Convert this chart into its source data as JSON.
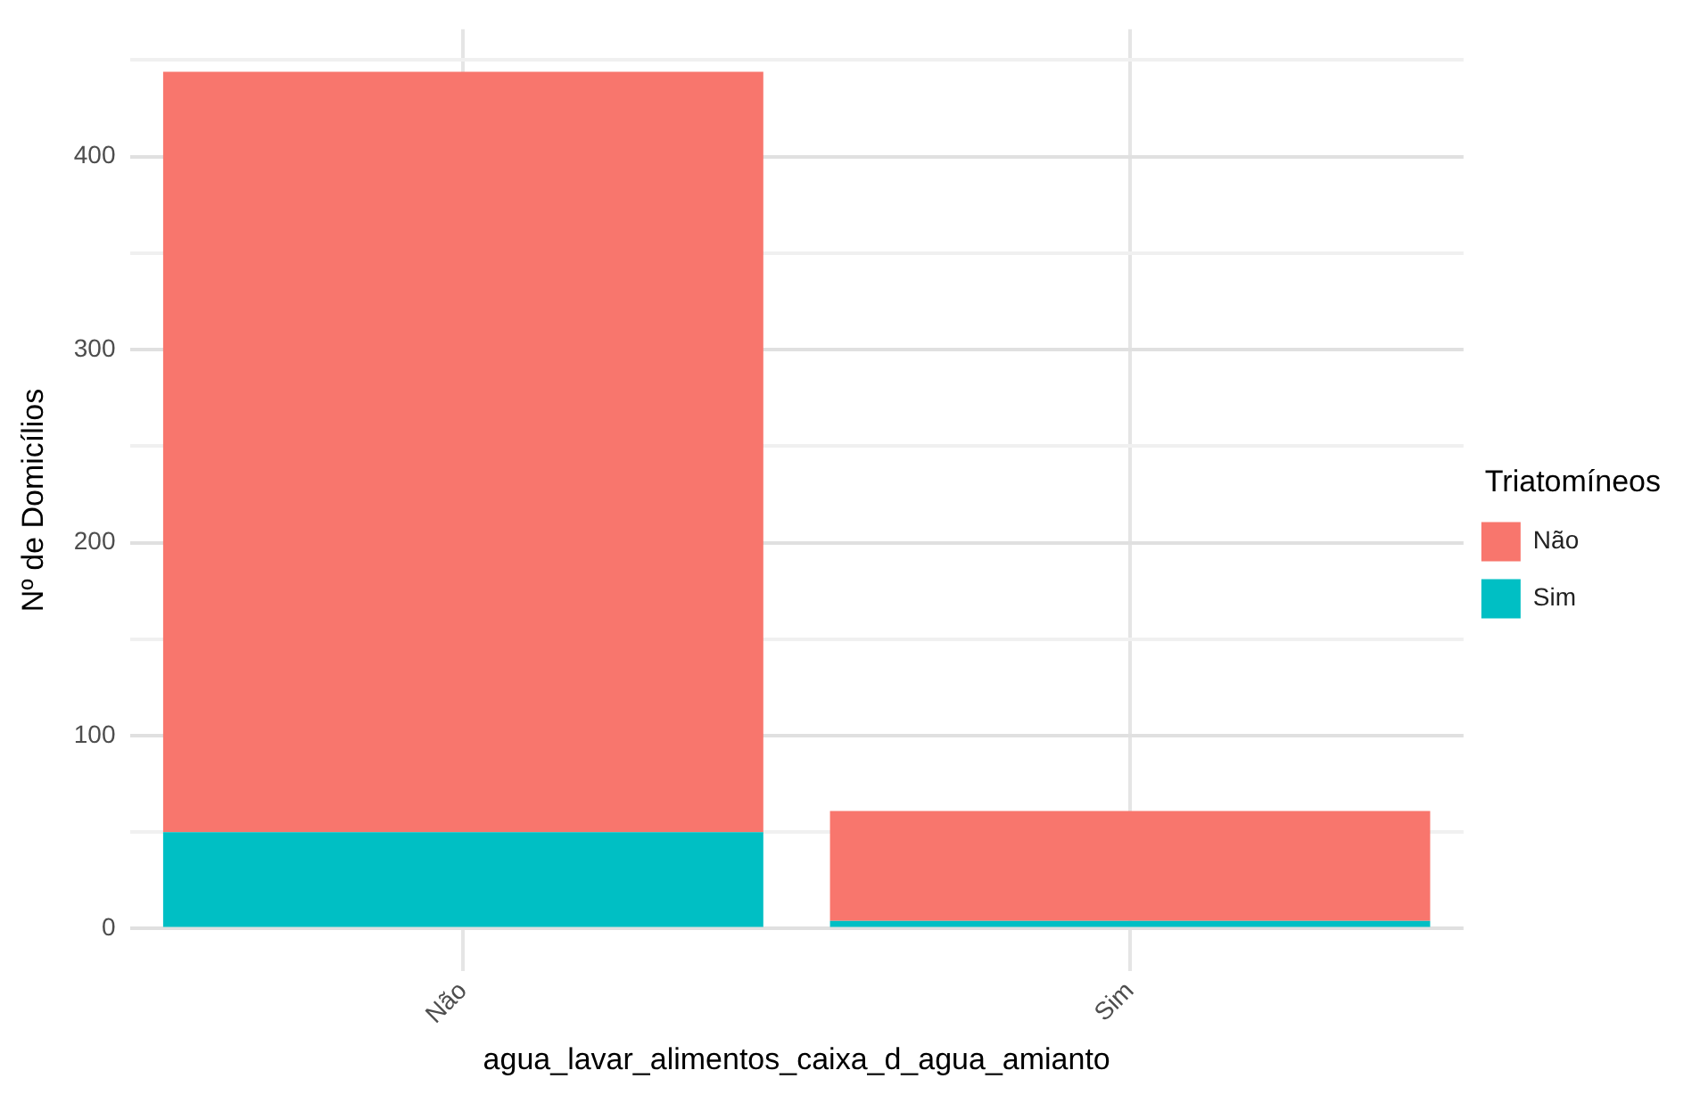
{
  "chart_data": {
    "type": "bar",
    "stacked": true,
    "xlabel": "agua_lavar_alimentos_caixa_d_agua_amianto",
    "ylabel": "Nº de Domicílios",
    "legend_title": "Triatomíneos",
    "legend": "right",
    "grid": true,
    "categories": [
      "Não",
      "Sim"
    ],
    "series": [
      {
        "name": "Sim",
        "color": "#00bfc4",
        "values": [
          50,
          4
        ]
      },
      {
        "name": "Não",
        "color": "#f8766d",
        "values": [
          394,
          57
        ]
      }
    ],
    "ylim": [
      -22,
      466
    ],
    "yticks": [
      0,
      {
        "value": 50,
        "label": null
      },
      100,
      {
        "value": 150,
        "label": null
      },
      200,
      {
        "value": 250,
        "label": null
      },
      300,
      {
        "value": 350,
        "label": null
      },
      400,
      {
        "value": 450,
        "label": null
      }
    ]
  }
}
